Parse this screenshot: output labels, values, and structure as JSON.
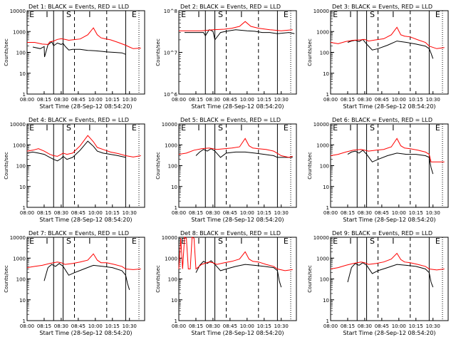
{
  "colors": {
    "events": "#000000",
    "lld": "#ff0000",
    "axes": "#000000",
    "background": "#ffffff"
  },
  "xlabel": "Start Time (28-Sep-12 08:54:20)",
  "ylabel": "Counts/sec",
  "x_ticks": [
    "08:00",
    "08:15",
    "08:30",
    "08:45",
    "10:00",
    "10:15",
    "10:30"
  ],
  "interval_labels": [
    "E",
    "I",
    "S",
    "I",
    "E"
  ],
  "chart_data": [
    {
      "type": "line",
      "title": "Det 1: BLACK = Events, RED = LLD",
      "y_scale": "log",
      "ylim": [
        1,
        10000
      ],
      "y_ticks": [
        "1",
        "10",
        "100",
        "1000",
        "10000"
      ],
      "solid_lines_min": [
        14,
        19,
        52
      ],
      "dashed_lines_min": [
        25,
        42
      ],
      "series": [
        {
          "name": "Events",
          "x": [
            3,
            7,
            9,
            9.2,
            11,
            13,
            14,
            16,
            18,
            19,
            20,
            22,
            24,
            28,
            32,
            36,
            40,
            42,
            46,
            50,
            52
          ],
          "y": [
            180,
            150,
            190,
            60,
            230,
            320,
            210,
            280,
            240,
            270,
            200,
            130,
            140,
            140,
            125,
            120,
            110,
            105,
            100,
            95,
            80
          ]
        },
        {
          "name": "LLD",
          "x": [
            0,
            4,
            8,
            11,
            12,
            14,
            16,
            18,
            20,
            22,
            24,
            28,
            32,
            35,
            37,
            39,
            41,
            44,
            48,
            52,
            54,
            56,
            60
          ],
          "y": [
            300,
            300,
            250,
            240,
            320,
            350,
            420,
            450,
            420,
            380,
            400,
            440,
            700,
            1500,
            700,
            500,
            450,
            400,
            300,
            220,
            180,
            150,
            160
          ]
        }
      ]
    },
    {
      "type": "line",
      "title": "Det 2: BLACK = Events, RED = LLD",
      "y_scale": "log",
      "ylim": [
        1000000,
        100000000
      ],
      "y_ticks": [
        "10^6",
        "10^7",
        "10^8"
      ],
      "solid_lines_min": [
        14,
        19,
        52
      ],
      "dashed_lines_min": [
        25,
        42
      ],
      "series": [
        {
          "name": "Events",
          "x": [
            3,
            6,
            10,
            13,
            14,
            16,
            18,
            19,
            22,
            25,
            30,
            36,
            40,
            44,
            48,
            52,
            58,
            61
          ],
          "y": [
            30000000,
            30000000,
            30000000,
            30000000,
            25000000,
            35000000,
            32000000,
            20000000,
            30000000,
            32000000,
            35000000,
            33000000,
            32000000,
            30000000,
            30000000,
            28000000,
            30000000,
            28000000
          ]
        },
        {
          "name": "LLD",
          "x": [
            0,
            6,
            12,
            18,
            24,
            28,
            32,
            35,
            38,
            42,
            48,
            54,
            60
          ],
          "y": [
            33000000,
            33000000,
            33000000,
            35000000,
            36000000,
            38000000,
            42000000,
            55000000,
            42000000,
            38000000,
            35000000,
            33000000,
            35000000
          ]
        }
      ]
    },
    {
      "type": "line",
      "title": "Det 3: BLACK = Events, RED = LLD",
      "y_scale": "log",
      "ylim": [
        1,
        10000
      ],
      "y_ticks": [
        "1",
        "10",
        "100",
        "1000",
        "10000"
      ],
      "solid_lines_min": [
        14,
        19,
        52
      ],
      "dashed_lines_min": [
        25,
        42
      ],
      "series": [
        {
          "name": "Events",
          "x": [
            9,
            11,
            13,
            15,
            17,
            19,
            22,
            25,
            30,
            35,
            40,
            45,
            50,
            52,
            53,
            54
          ],
          "y": [
            300,
            350,
            380,
            330,
            420,
            250,
            130,
            150,
            220,
            350,
            300,
            250,
            200,
            150,
            90,
            50
          ]
        },
        {
          "name": "LLD",
          "x": [
            0,
            4,
            8,
            12,
            16,
            18,
            20,
            24,
            28,
            32,
            35,
            37,
            39,
            42,
            46,
            50,
            52,
            56,
            60
          ],
          "y": [
            300,
            260,
            330,
            380,
            400,
            420,
            350,
            400,
            450,
            700,
            1600,
            700,
            600,
            550,
            400,
            300,
            200,
            150,
            170
          ]
        }
      ]
    },
    {
      "type": "line",
      "title": "Det 4: BLACK = Events, RED = LLD",
      "y_scale": "log",
      "ylim": [
        1,
        10000
      ],
      "y_ticks": [
        "1",
        "10",
        "100",
        "1000",
        "10000"
      ],
      "solid_lines_min": [
        14,
        19,
        52
      ],
      "dashed_lines_min": [
        25,
        42
      ],
      "series": [
        {
          "name": "Events",
          "x": [
            0,
            3,
            6,
            9,
            12,
            14,
            16,
            18,
            19,
            21,
            24,
            28,
            32,
            35,
            37,
            40,
            44,
            48,
            52
          ],
          "y": [
            400,
            450,
            400,
            350,
            250,
            200,
            170,
            220,
            280,
            200,
            250,
            550,
            1500,
            850,
            500,
            400,
            350,
            300,
            250
          ]
        },
        {
          "name": "LLD",
          "x": [
            0,
            3,
            6,
            9,
            12,
            14,
            16,
            18,
            19,
            21,
            24,
            28,
            32,
            35,
            37,
            40,
            44,
            48,
            52,
            56,
            60
          ],
          "y": [
            500,
            550,
            650,
            500,
            350,
            300,
            280,
            350,
            400,
            350,
            400,
            900,
            2800,
            1400,
            750,
            600,
            450,
            380,
            300,
            260,
            300
          ]
        }
      ]
    },
    {
      "type": "line",
      "title": "Det 5: BLACK = Events, RED = LLD",
      "y_scale": "log",
      "ylim": [
        1,
        10000
      ],
      "y_ticks": [
        "1",
        "10",
        "100",
        "1000",
        "10000"
      ],
      "solid_lines_min": [
        14,
        19,
        52
      ],
      "dashed_lines_min": [
        25,
        42
      ],
      "series": [
        {
          "name": "Events",
          "x": [
            9,
            11,
            13,
            15,
            17,
            19,
            22,
            25,
            30,
            35,
            40,
            45,
            50,
            52,
            56,
            60
          ],
          "y": [
            300,
            450,
            600,
            500,
            650,
            500,
            250,
            400,
            450,
            450,
            400,
            350,
            300,
            250,
            250,
            250
          ]
        },
        {
          "name": "LLD",
          "x": [
            0,
            4,
            8,
            12,
            16,
            18,
            20,
            24,
            28,
            32,
            35,
            37,
            39,
            42,
            46,
            50,
            54,
            58,
            60
          ],
          "y": [
            350,
            400,
            550,
            650,
            700,
            650,
            600,
            650,
            700,
            800,
            2000,
            900,
            700,
            650,
            600,
            500,
            300,
            250,
            280
          ]
        }
      ]
    },
    {
      "type": "line",
      "title": "Det 6: BLACK = Events, RED = LLD",
      "y_scale": "log",
      "ylim": [
        1,
        10000
      ],
      "y_ticks": [
        "1",
        "10",
        "100",
        "1000",
        "10000"
      ],
      "solid_lines_min": [
        14,
        19,
        52
      ],
      "dashed_lines_min": [
        25,
        42
      ],
      "series": [
        {
          "name": "Events",
          "x": [
            9,
            11,
            13,
            15,
            17,
            19,
            22,
            25,
            30,
            35,
            40,
            45,
            50,
            52,
            53,
            54
          ],
          "y": [
            350,
            450,
            500,
            400,
            550,
            350,
            150,
            200,
            300,
            400,
            350,
            350,
            300,
            250,
            80,
            40
          ]
        },
        {
          "name": "LLD",
          "x": [
            0,
            4,
            8,
            12,
            16,
            18,
            20,
            24,
            28,
            32,
            35,
            37,
            39,
            42,
            46,
            50,
            52,
            53,
            56,
            60
          ],
          "y": [
            300,
            350,
            450,
            550,
            600,
            550,
            500,
            550,
            600,
            800,
            2000,
            900,
            700,
            650,
            550,
            450,
            350,
            150,
            150,
            150
          ]
        }
      ]
    },
    {
      "type": "line",
      "title": "Det 7: BLACK = Events, RED = LLD",
      "y_scale": "log",
      "ylim": [
        1,
        10000
      ],
      "y_ticks": [
        "1",
        "10",
        "100",
        "1000",
        "10000"
      ],
      "solid_lines_min": [
        14,
        19,
        52
      ],
      "dashed_lines_min": [
        25,
        42
      ],
      "series": [
        {
          "name": "Events",
          "x": [
            9,
            11,
            13,
            15,
            17,
            19,
            22,
            25,
            30,
            35,
            40,
            45,
            50,
            52,
            53,
            54
          ],
          "y": [
            80,
            350,
            500,
            400,
            550,
            400,
            150,
            200,
            300,
            450,
            400,
            350,
            250,
            150,
            60,
            30
          ]
        },
        {
          "name": "LLD",
          "x": [
            0,
            4,
            8,
            12,
            16,
            18,
            20,
            24,
            28,
            32,
            35,
            37,
            39,
            42,
            46,
            50,
            52,
            56,
            60
          ],
          "y": [
            350,
            400,
            450,
            550,
            650,
            600,
            500,
            550,
            650,
            800,
            1600,
            800,
            600,
            600,
            500,
            400,
            300,
            280,
            300
          ]
        }
      ]
    },
    {
      "type": "line",
      "title": "Det 8: BLACK = Events, RED = LLD",
      "y_scale": "log",
      "ylim": [
        1,
        10000
      ],
      "y_ticks": [
        "1",
        "10",
        "100",
        "1000",
        "10000"
      ],
      "solid_lines_min": [
        14,
        19,
        52
      ],
      "dashed_lines_min": [
        25,
        42
      ],
      "series": [
        {
          "name": "Events",
          "x": [
            9,
            11,
            13,
            15,
            17,
            19,
            22,
            25,
            30,
            35,
            40,
            45,
            50,
            52,
            53,
            54
          ],
          "y": [
            200,
            450,
            700,
            550,
            750,
            500,
            250,
            300,
            400,
            500,
            450,
            400,
            350,
            250,
            80,
            40
          ]
        },
        {
          "name": "LLD",
          "x": [
            0,
            1,
            2,
            3,
            4,
            5,
            6,
            7,
            8,
            9,
            12,
            16,
            18,
            20,
            24,
            28,
            32,
            35,
            37,
            39,
            42,
            46,
            50,
            52,
            56,
            60
          ],
          "y": [
            300,
            9000,
            300,
            10000,
            9000,
            300,
            300,
            10000,
            9000,
            300,
            500,
            650,
            600,
            500,
            600,
            700,
            900,
            2000,
            900,
            700,
            650,
            500,
            400,
            300,
            250,
            280
          ]
        }
      ]
    },
    {
      "type": "line",
      "title": "Det 9: BLACK = Events, RED = LLD",
      "y_scale": "log",
      "ylim": [
        1,
        10000
      ],
      "y_ticks": [
        "1",
        "10",
        "100",
        "1000",
        "10000"
      ],
      "solid_lines_min": [
        14,
        19,
        52
      ],
      "dashed_lines_min": [
        25,
        42
      ],
      "series": [
        {
          "name": "Events",
          "x": [
            9,
            11,
            13,
            15,
            17,
            19,
            22,
            25,
            30,
            35,
            40,
            45,
            50,
            52,
            53,
            54
          ],
          "y": [
            70,
            350,
            550,
            450,
            600,
            450,
            180,
            250,
            350,
            500,
            450,
            400,
            300,
            200,
            70,
            40
          ]
        },
        {
          "name": "LLD",
          "x": [
            0,
            4,
            8,
            12,
            16,
            18,
            20,
            24,
            28,
            32,
            35,
            37,
            39,
            42,
            46,
            50,
            52,
            56,
            60
          ],
          "y": [
            300,
            350,
            450,
            550,
            650,
            600,
            500,
            550,
            650,
            900,
            1700,
            850,
            650,
            600,
            500,
            400,
            300,
            270,
            300
          ]
        }
      ]
    }
  ]
}
